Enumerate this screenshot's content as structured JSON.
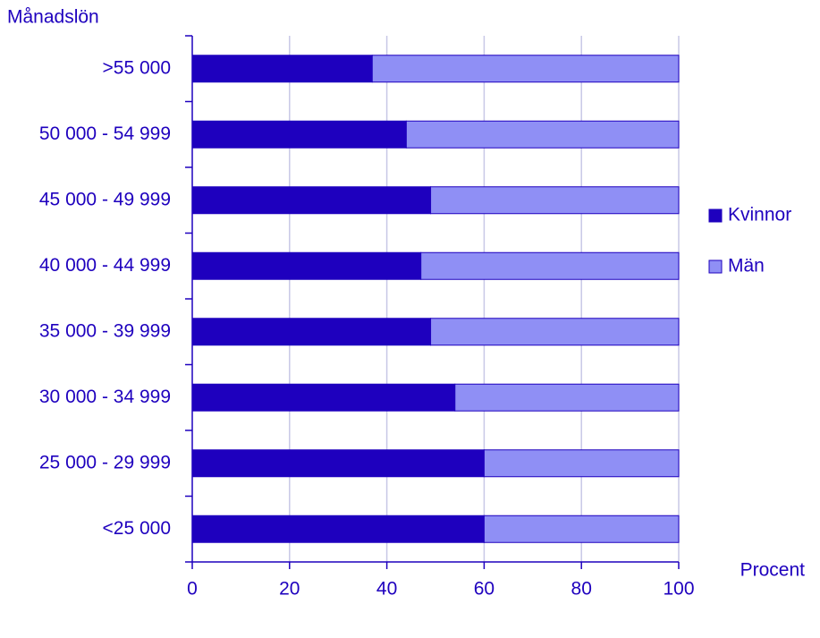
{
  "chart_data": {
    "type": "bar",
    "orientation": "horizontal",
    "stacked": true,
    "y_label": "Månadslön",
    "x_label": "Procent",
    "categories": [
      ">55 000",
      "50 000 - 54 999",
      "45 000 - 49 999",
      "40 000 - 44 999",
      "35 000 - 39 999",
      "30 000 - 34 999",
      "25 000 - 29 999",
      "<25 000"
    ],
    "series": [
      {
        "name": "Kvinnor",
        "color": "#1e00be",
        "values": [
          37,
          44,
          49,
          47,
          49,
          54,
          60,
          60
        ]
      },
      {
        "name": "Män",
        "color": "#8f8ff5",
        "values": [
          63,
          56,
          51,
          53,
          51,
          46,
          40,
          40
        ]
      }
    ],
    "xlim": [
      0,
      100
    ],
    "xticks": [
      0,
      20,
      40,
      60,
      80,
      100
    ],
    "grid": true,
    "legend": "right"
  }
}
